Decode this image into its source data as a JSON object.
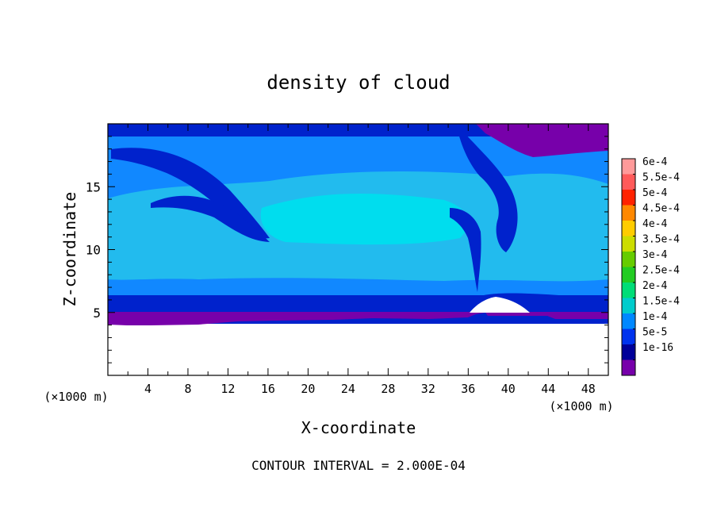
{
  "chart_data": {
    "type": "heatmap",
    "title": "density of cloud",
    "xlabel": "X-coordinate",
    "ylabel": "Z-coordinate",
    "x_unit": "(×1000 m)",
    "y_unit": "(×1000 m)",
    "xlim": [
      0,
      50
    ],
    "ylim": [
      0,
      20
    ],
    "x_ticks": [
      "4",
      "8",
      "12",
      "16",
      "20",
      "24",
      "28",
      "32",
      "36",
      "40",
      "44",
      "48"
    ],
    "y_ticks": [
      "5",
      "10",
      "15"
    ],
    "footer": "CONTOUR INTERVAL = 2.000E-04",
    "colorbar": {
      "labels": [
        "6e-4",
        "5.5e-4",
        "5e-4",
        "4.5e-4",
        "4e-4",
        "3.5e-4",
        "3e-4",
        "2.5e-4",
        "2e-4",
        "1.5e-4",
        "1e-4",
        "5e-5",
        "1e-16"
      ],
      "colors": [
        "#ff9a9a",
        "#ff5a5a",
        "#ff2200",
        "#ff8800",
        "#ffcc00",
        "#ccdd00",
        "#66cc00",
        "#22cc22",
        "#00dd77",
        "#00cccc",
        "#0088ff",
        "#0033ee",
        "#000099",
        "#7700aa"
      ]
    },
    "colors": {
      "cloud_base": "#7700aa",
      "cloud_edge": "#0022cc",
      "cloud_mid": "#1188ff",
      "cloud_core": "#22bbee",
      "cloud_peak": "#00ddee",
      "clear_air": "#ffffff"
    }
  }
}
